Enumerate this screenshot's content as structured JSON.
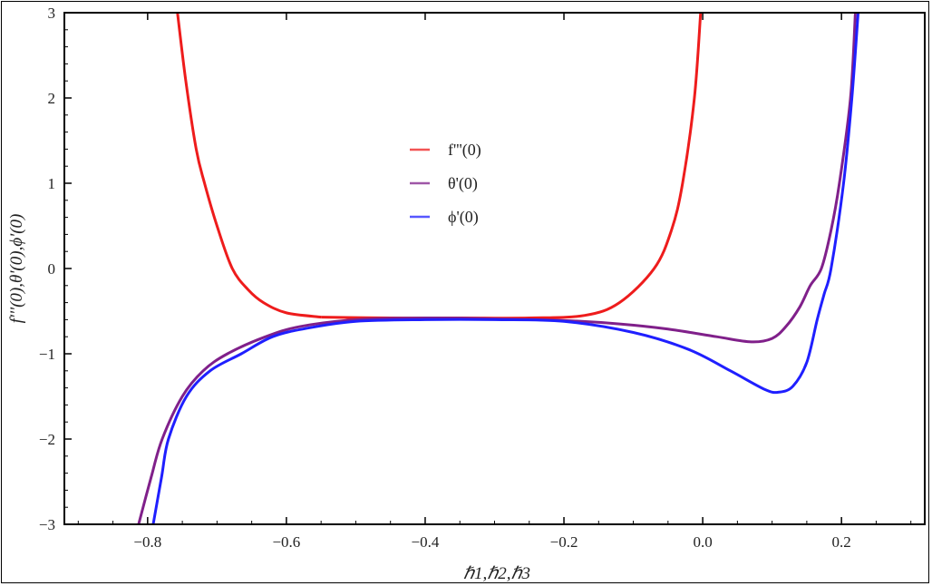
{
  "chart_data": {
    "type": "line",
    "xlabel": "ℏ1,ℏ2,ℏ3",
    "ylabel": "f'''(0),θ'(0),ϕ'(0)",
    "xlim": [
      -0.92,
      0.32
    ],
    "ylim": [
      -3,
      3
    ],
    "xticks": [
      -0.8,
      -0.6,
      -0.4,
      -0.2,
      0.0,
      0.2
    ],
    "xtick_labels": [
      "−0.8",
      "−0.6",
      "−0.4",
      "−0.2",
      "0.0",
      "0.2"
    ],
    "yticks": [
      -3,
      -2,
      -1,
      0,
      1,
      2,
      3
    ],
    "ytick_labels": [
      "−3",
      "−2",
      "−1",
      "0",
      "1",
      "2",
      "3"
    ],
    "grid": false,
    "legend_position": "center",
    "series": [
      {
        "name": "f'''(0)",
        "color": "#ee1c1c",
        "segments": [
          {
            "x": [
              -0.757,
              -0.745,
              -0.73,
              -0.718,
              -0.7,
              -0.678,
              -0.655,
              -0.633,
              -0.6,
              -0.55
            ],
            "y": [
              3,
              2.2,
              1.4,
              1.0,
              0.5,
              0.0,
              -0.25,
              -0.4,
              -0.52,
              -0.57
            ]
          },
          {
            "x": [
              -0.55,
              -0.45,
              -0.35,
              -0.25,
              -0.17,
              -0.12,
              -0.07,
              -0.045,
              -0.029,
              -0.012,
              -0.003
            ],
            "y": [
              -0.57,
              -0.58,
              -0.58,
              -0.58,
              -0.55,
              -0.4,
              0.0,
              0.45,
              1.0,
              2.0,
              3.0
            ]
          }
        ]
      },
      {
        "name": "θ'(0)",
        "color": "#80208a",
        "segments": [
          {
            "x": [
              -0.813,
              -0.795,
              -0.779,
              -0.75,
              -0.72,
              -0.685,
              -0.63,
              -0.58,
              -0.5,
              -0.4,
              -0.3,
              -0.2,
              -0.12,
              -0.05,
              0.02,
              0.07,
              0.1,
              0.12,
              0.14,
              0.155,
              0.171,
              0.185,
              0.197,
              0.213,
              0.22
            ],
            "y": [
              -3,
              -2.45,
              -2.0,
              -1.5,
              -1.2,
              -1.0,
              -0.8,
              -0.68,
              -0.6,
              -0.58,
              -0.59,
              -0.61,
              -0.65,
              -0.71,
              -0.8,
              -0.86,
              -0.82,
              -0.68,
              -0.45,
              -0.2,
              0.0,
              0.45,
              1.0,
              2.0,
              3.0
            ]
          }
        ]
      },
      {
        "name": "ϕ'(0)",
        "color": "#1f1fff",
        "segments": [
          {
            "x": [
              -0.792,
              -0.78,
              -0.77,
              -0.744,
              -0.71,
              -0.665,
              -0.62,
              -0.57,
              -0.5,
              -0.4,
              -0.3,
              -0.2,
              -0.1,
              -0.02,
              0.04,
              0.09,
              0.11,
              0.13,
              0.15,
              0.165,
              0.175,
              0.185,
              0.203,
              0.215,
              0.224
            ],
            "y": [
              -3,
              -2.45,
              -2.0,
              -1.5,
              -1.2,
              -1.0,
              -0.8,
              -0.7,
              -0.62,
              -0.6,
              -0.6,
              -0.62,
              -0.75,
              -0.95,
              -1.2,
              -1.42,
              -1.45,
              -1.38,
              -1.1,
              -0.6,
              -0.3,
              0.0,
              1.0,
              2.0,
              3.0
            ]
          }
        ]
      }
    ]
  }
}
